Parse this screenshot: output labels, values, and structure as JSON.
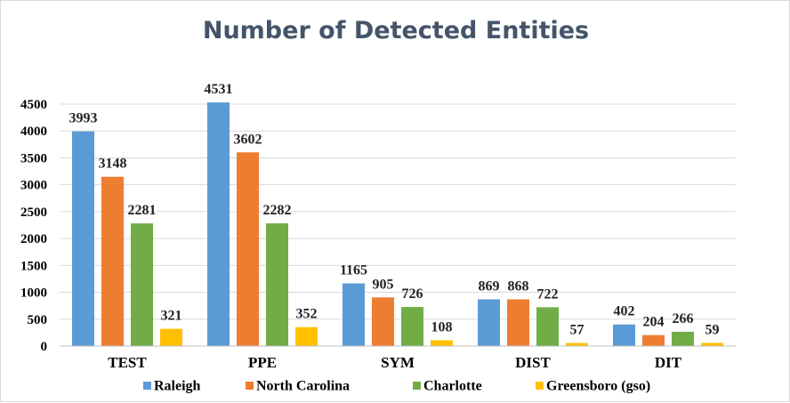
{
  "chart_data": {
    "type": "bar",
    "title": "Number of Detected Entities",
    "xlabel": "",
    "ylabel": "",
    "categories": [
      "TEST",
      "PPE",
      "SYM",
      "DIST",
      "DIT"
    ],
    "ylim": [
      0,
      4500
    ],
    "yticks": [
      0,
      500,
      1000,
      1500,
      2000,
      2500,
      3000,
      3500,
      4000,
      4500
    ],
    "grid": true,
    "legend_position": "bottom",
    "series": [
      {
        "name": "Raleigh",
        "color": "#5b9bd5",
        "values": [
          3993,
          4531,
          1165,
          869,
          402
        ]
      },
      {
        "name": "North Carolina",
        "color": "#ed7d31",
        "values": [
          3148,
          3602,
          905,
          868,
          204
        ]
      },
      {
        "name": "Charlotte",
        "color": "#70ad47",
        "values": [
          2281,
          2282,
          726,
          722,
          266
        ]
      },
      {
        "name": "Greensboro (gso)",
        "color": "#ffc000",
        "values": [
          321,
          352,
          108,
          57,
          59
        ]
      }
    ]
  }
}
